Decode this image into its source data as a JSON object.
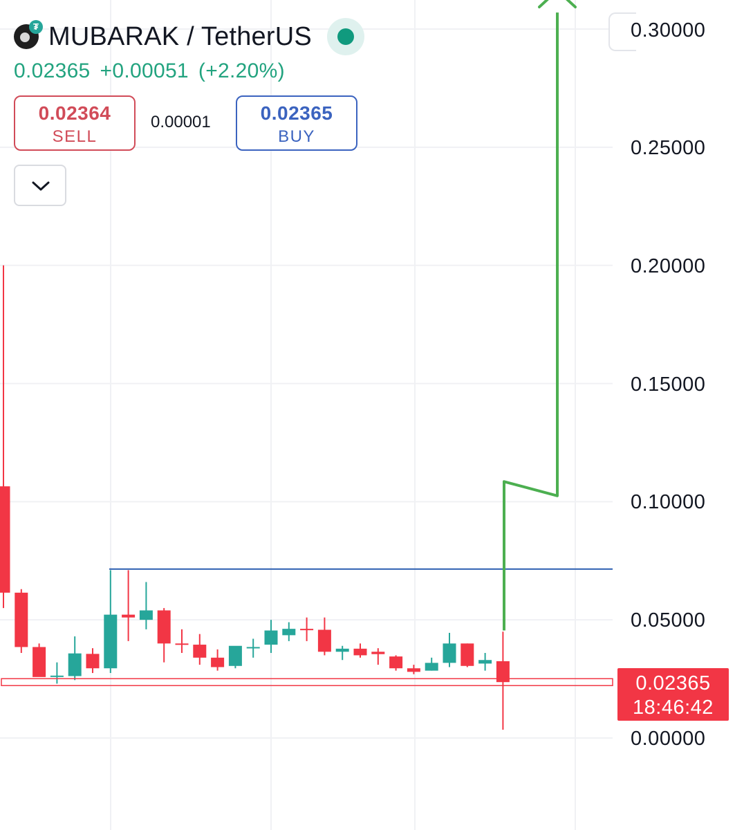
{
  "header": {
    "symbol": "MUBARAK / TetherUS",
    "logo_badge": "₮",
    "status_color": "#109a7e"
  },
  "quote": {
    "last": "0.02365",
    "change": "+0.00051",
    "change_pct": "(+2.20%)"
  },
  "trade": {
    "sell_price": "0.02364",
    "sell_label": "SELL",
    "spread": "0.00001",
    "buy_price": "0.02365",
    "buy_label": "BUY"
  },
  "icons": {
    "dropdown": "chevron-down-icon",
    "logo": "mubarak-coin-logo"
  },
  "price_axis": {
    "labels": [
      "0.30000",
      "0.25000",
      "0.20000",
      "0.15000",
      "0.10000",
      "0.05000",
      "0.00000"
    ]
  },
  "last_price_label": {
    "price": "0.02365",
    "countdown": "18:46:42"
  },
  "colors": {
    "up": "#26a69a",
    "down": "#f23645",
    "drawing_arrow": "#4caf50",
    "horizontal_line": "#2a5db0"
  },
  "chart_data": {
    "type": "candlestick",
    "ylim": [
      -0.0012,
      0.309
    ],
    "y_ticks": [
      0.3,
      0.25,
      0.2,
      0.15,
      0.1,
      0.05,
      0.0
    ],
    "candles": [
      {
        "o": 0.1065,
        "h": 0.2,
        "l": 0.055,
        "c": 0.0615
      },
      {
        "o": 0.0615,
        "h": 0.063,
        "l": 0.036,
        "c": 0.0385
      },
      {
        "o": 0.0385,
        "h": 0.04,
        "l": 0.026,
        "c": 0.0258
      },
      {
        "o": 0.0262,
        "h": 0.032,
        "l": 0.023,
        "c": 0.0264
      },
      {
        "o": 0.0262,
        "h": 0.043,
        "l": 0.0245,
        "c": 0.0358
      },
      {
        "o": 0.0356,
        "h": 0.038,
        "l": 0.0275,
        "c": 0.0295
      },
      {
        "o": 0.0295,
        "h": 0.071,
        "l": 0.0275,
        "c": 0.0522
      },
      {
        "o": 0.0522,
        "h": 0.071,
        "l": 0.041,
        "c": 0.051
      },
      {
        "o": 0.05,
        "h": 0.066,
        "l": 0.046,
        "c": 0.054
      },
      {
        "o": 0.054,
        "h": 0.055,
        "l": 0.032,
        "c": 0.04
      },
      {
        "o": 0.04,
        "h": 0.046,
        "l": 0.036,
        "c": 0.0395
      },
      {
        "o": 0.0395,
        "h": 0.044,
        "l": 0.031,
        "c": 0.034
      },
      {
        "o": 0.034,
        "h": 0.0375,
        "l": 0.0285,
        "c": 0.03
      },
      {
        "o": 0.0305,
        "h": 0.0365,
        "l": 0.0295,
        "c": 0.039
      },
      {
        "o": 0.038,
        "h": 0.042,
        "l": 0.034,
        "c": 0.0385
      },
      {
        "o": 0.0395,
        "h": 0.05,
        "l": 0.036,
        "c": 0.0455
      },
      {
        "o": 0.0435,
        "h": 0.049,
        "l": 0.041,
        "c": 0.0462
      },
      {
        "o": 0.0462,
        "h": 0.051,
        "l": 0.041,
        "c": 0.0458
      },
      {
        "o": 0.0458,
        "h": 0.051,
        "l": 0.035,
        "c": 0.0365
      },
      {
        "o": 0.0365,
        "h": 0.039,
        "l": 0.033,
        "c": 0.0378
      },
      {
        "o": 0.0378,
        "h": 0.04,
        "l": 0.034,
        "c": 0.035
      },
      {
        "o": 0.0365,
        "h": 0.038,
        "l": 0.031,
        "c": 0.0355
      },
      {
        "o": 0.0345,
        "h": 0.035,
        "l": 0.0285,
        "c": 0.0295
      },
      {
        "o": 0.0295,
        "h": 0.031,
        "l": 0.027,
        "c": 0.028
      },
      {
        "o": 0.0285,
        "h": 0.034,
        "l": 0.0285,
        "c": 0.0318
      },
      {
        "o": 0.0318,
        "h": 0.0445,
        "l": 0.03,
        "c": 0.04
      },
      {
        "o": 0.04,
        "h": 0.04,
        "l": 0.03,
        "c": 0.0305
      },
      {
        "o": 0.0315,
        "h": 0.036,
        "l": 0.0285,
        "c": 0.033
      },
      {
        "o": 0.0325,
        "h": 0.045,
        "l": 0.0035,
        "c": 0.02365
      }
    ],
    "horizontal_lines": [
      {
        "y": 0.0715,
        "from_index": 6,
        "color": "#2a5db0"
      },
      {
        "y": 0.02365,
        "from_index": 0,
        "color": "#f23645",
        "style": "price-line"
      }
    ],
    "drawing_path": [
      {
        "i": 28,
        "y": 0.0455
      },
      {
        "i": 28,
        "y": 0.1085
      },
      {
        "i": 31,
        "y": 0.1025
      },
      {
        "i": 31,
        "y": 0.307
      }
    ]
  }
}
